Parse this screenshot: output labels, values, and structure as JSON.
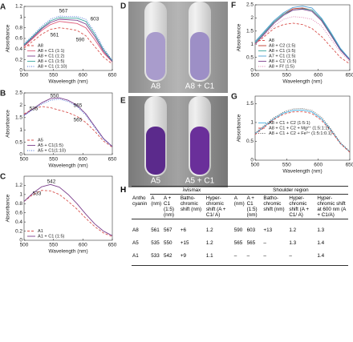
{
  "chart_data": [
    {
      "panel": "A",
      "type": "line",
      "xlabel": "Wavelength (nm)",
      "ylabel": "Absorbance",
      "xlim": [
        500,
        650
      ],
      "xticks": [
        500,
        550,
        600,
        650
      ],
      "ylim": [
        0,
        1.2
      ],
      "yticks": [
        0,
        0.2,
        0.4,
        0.6,
        0.8,
        1,
        1.2
      ],
      "legend": "lower left",
      "annotations": [
        "567",
        "603",
        "561",
        "590"
      ],
      "x": [
        500,
        515,
        530,
        545,
        560,
        575,
        590,
        605,
        620,
        635,
        650
      ],
      "series": [
        {
          "name": "A8",
          "color": "#d9534f",
          "style": "dashed",
          "values": [
            0.42,
            0.55,
            0.68,
            0.77,
            0.8,
            0.78,
            0.75,
            0.65,
            0.45,
            0.25,
            0.12
          ]
        },
        {
          "name": "A8 + C1 (1:1)",
          "color": "#e0607e",
          "style": "solid",
          "values": [
            0.45,
            0.6,
            0.75,
            0.86,
            0.92,
            0.9,
            0.88,
            0.8,
            0.58,
            0.33,
            0.16
          ]
        },
        {
          "name": "A8 + C1 (1:2)",
          "color": "#7b3f8c",
          "style": "solid",
          "values": [
            0.47,
            0.62,
            0.78,
            0.9,
            0.96,
            0.95,
            0.94,
            0.87,
            0.64,
            0.36,
            0.17
          ]
        },
        {
          "name": "A8 + C1 (1:5)",
          "color": "#3aa6a0",
          "style": "solid",
          "values": [
            0.48,
            0.64,
            0.8,
            0.93,
            0.99,
            0.98,
            0.98,
            0.92,
            0.68,
            0.39,
            0.18
          ]
        },
        {
          "name": "A8 + C1 (1:10)",
          "color": "#4a6fd6",
          "style": "dotted",
          "values": [
            0.5,
            0.66,
            0.83,
            0.96,
            1.02,
            1.01,
            1.01,
            0.96,
            0.72,
            0.42,
            0.19
          ]
        }
      ]
    },
    {
      "panel": "B",
      "type": "line",
      "xlabel": "Wavelength (nm)",
      "ylabel": "Absorbance",
      "xlim": [
        500,
        650
      ],
      "xticks": [
        500,
        550,
        600,
        650
      ],
      "ylim": [
        0,
        2.5
      ],
      "yticks": [
        0,
        0.5,
        1,
        1.5,
        2,
        2.5
      ],
      "legend": "lower left",
      "annotations": [
        "550",
        "535",
        "565",
        "565"
      ],
      "x": [
        500,
        515,
        530,
        545,
        560,
        575,
        590,
        605,
        620,
        635,
        650
      ],
      "series": [
        {
          "name": "A5",
          "color": "#d9534f",
          "style": "dashed",
          "values": [
            1.65,
            1.85,
            1.95,
            1.9,
            1.8,
            1.7,
            1.55,
            1.3,
            0.95,
            0.55,
            0.3
          ]
        },
        {
          "name": "A5 + C1(1:5)",
          "color": "#7b3f8c",
          "style": "solid",
          "values": [
            1.6,
            1.85,
            2.1,
            2.27,
            2.3,
            2.2,
            2.0,
            1.65,
            1.15,
            0.65,
            0.33
          ]
        },
        {
          "name": "A5 + C1(1:10)",
          "color": "#4a6fd6",
          "style": "dotted",
          "values": [
            1.58,
            1.82,
            2.05,
            2.2,
            2.25,
            2.15,
            1.95,
            1.6,
            1.1,
            0.62,
            0.32
          ]
        }
      ]
    },
    {
      "panel": "C",
      "type": "line",
      "xlabel": "Wavelength (nm)",
      "ylabel": "Absorbance",
      "xlim": [
        500,
        650
      ],
      "xticks": [
        500,
        550,
        600,
        650
      ],
      "ylim": [
        0,
        1.4
      ],
      "yticks": [
        0,
        0.2,
        0.4,
        0.6,
        0.8,
        1,
        1.2
      ],
      "legend": "lower left",
      "annotations": [
        "542",
        "533"
      ],
      "x": [
        500,
        515,
        530,
        545,
        560,
        575,
        590,
        605,
        620,
        635,
        650
      ],
      "series": [
        {
          "name": "A1",
          "color": "#d9534f",
          "style": "dashed",
          "values": [
            0.85,
            1.0,
            1.09,
            1.08,
            1.0,
            0.85,
            0.68,
            0.48,
            0.3,
            0.16,
            0.08
          ]
        },
        {
          "name": "A1 + C1 (1:5)",
          "color": "#7b3f8c",
          "style": "solid",
          "values": [
            0.85,
            1.03,
            1.17,
            1.22,
            1.16,
            1.0,
            0.8,
            0.57,
            0.36,
            0.2,
            0.1
          ]
        }
      ]
    },
    {
      "panel": "F",
      "type": "line",
      "xlabel": "Wavelength (nm)",
      "ylabel": "Absorbance",
      "xlim": [
        500,
        650
      ],
      "xticks": [
        500,
        550,
        600,
        650
      ],
      "ylim": [
        0,
        2.5
      ],
      "yticks": [
        0,
        0.5,
        1,
        1.5,
        2,
        2.5
      ],
      "legend": "lower left",
      "annotations": [],
      "x": [
        500,
        515,
        530,
        545,
        560,
        575,
        590,
        605,
        620,
        635,
        650
      ],
      "series": [
        {
          "name": "A8",
          "color": "#d9534f",
          "style": "dashed",
          "values": [
            1.0,
            1.3,
            1.6,
            1.75,
            1.8,
            1.75,
            1.6,
            1.3,
            0.9,
            0.5,
            0.25
          ]
        },
        {
          "name": "A8 + C2 (1:5)",
          "color": "#c0392b",
          "style": "solid",
          "values": [
            1.05,
            1.45,
            1.85,
            2.15,
            2.35,
            2.38,
            2.3,
            1.95,
            1.4,
            0.8,
            0.4
          ]
        },
        {
          "name": "A8 + C1 (1:5)",
          "color": "#3aa6a0",
          "style": "solid",
          "values": [
            1.05,
            1.45,
            1.85,
            2.15,
            2.3,
            2.35,
            2.3,
            1.95,
            1.4,
            0.82,
            0.42
          ]
        },
        {
          "name": "A7 + C1 (1:5)",
          "color": "#4a9fd6",
          "style": "solid",
          "values": [
            1.1,
            1.5,
            1.9,
            2.2,
            2.4,
            2.45,
            2.38,
            2.0,
            1.45,
            0.85,
            0.43
          ]
        },
        {
          "name": "A8 + C1' (1:5)",
          "color": "#7b3f8c",
          "style": "solid",
          "values": [
            1.0,
            1.4,
            1.8,
            2.1,
            2.3,
            2.33,
            2.25,
            1.9,
            1.35,
            0.78,
            0.4
          ]
        },
        {
          "name": "A8 + Fl' (1:5)",
          "color": "#e07fb0",
          "style": "dotted",
          "values": [
            1.0,
            1.35,
            1.7,
            1.95,
            2.05,
            2.02,
            1.95,
            1.7,
            1.2,
            0.7,
            0.35
          ]
        }
      ]
    },
    {
      "panel": "G",
      "type": "line",
      "xlabel": "Wavelength (nm)",
      "ylabel": "Absorbance",
      "xlim": [
        500,
        650
      ],
      "xticks": [
        500,
        550,
        600,
        650
      ],
      "ylim": [
        0,
        1.7
      ],
      "yticks": [
        0,
        0.5,
        1,
        1.5
      ],
      "legend": "center left",
      "annotations": [],
      "x": [
        500,
        515,
        530,
        545,
        560,
        575,
        590,
        605,
        620,
        635,
        650
      ],
      "series": [
        {
          "name": "A8 + C1 + C2 (1:5:1)",
          "color": "#4ab0e0",
          "style": "solid",
          "values": [
            0.7,
            0.9,
            1.1,
            1.25,
            1.32,
            1.33,
            1.28,
            1.1,
            0.8,
            0.45,
            0.22
          ]
        },
        {
          "name": "A8 + C1 + C2 + Mg²⁺ (1:5:1:1)",
          "color": "#d9534f",
          "style": "dashed",
          "values": [
            0.68,
            0.88,
            1.08,
            1.22,
            1.28,
            1.29,
            1.24,
            1.06,
            0.78,
            0.44,
            0.21
          ]
        },
        {
          "name": "A8 + C1 + C2 + Fe³⁺ (1:5:1:0.1)",
          "color": "#555555",
          "style": "dotted",
          "values": [
            0.72,
            0.93,
            1.13,
            1.28,
            1.36,
            1.37,
            1.32,
            1.14,
            0.83,
            0.47,
            0.23
          ]
        }
      ]
    }
  ],
  "photos": [
    {
      "panel": "D",
      "labels": [
        "A8",
        "A8 + C1"
      ]
    },
    {
      "panel": "E",
      "labels": [
        "A5",
        "A5 + C1"
      ]
    }
  ],
  "table": {
    "panel": "H",
    "group_headers": [
      "λvismax",
      "Shoulder region"
    ],
    "columns": [
      "Antho cyanin",
      "A (nm)",
      "A + C1 (1:5) (nm)",
      "Batho- chromic shift (nm)",
      "Hyper- chromic shift (A + C1/ A)",
      "A (nm)",
      "A + C1 (1:5) (nm)",
      "Batho- chromic shift (nm)",
      "Hyper- chromic shift (A + C1/ A)",
      "Hyper- chromic shift at 600 nm (A + C1/A)"
    ],
    "rows": [
      [
        "A8",
        "561",
        "567",
        "+6",
        "1.2",
        "590",
        "603",
        "+13",
        "1.2",
        "1.3"
      ],
      [
        "A5",
        "535",
        "550",
        "+15",
        "1.2",
        "565",
        "565",
        "–",
        "1.3",
        "1.4"
      ],
      [
        "A1",
        "533",
        "542",
        "+9",
        "1.1",
        "–",
        "–",
        "–",
        "–",
        "1.4"
      ]
    ]
  }
}
